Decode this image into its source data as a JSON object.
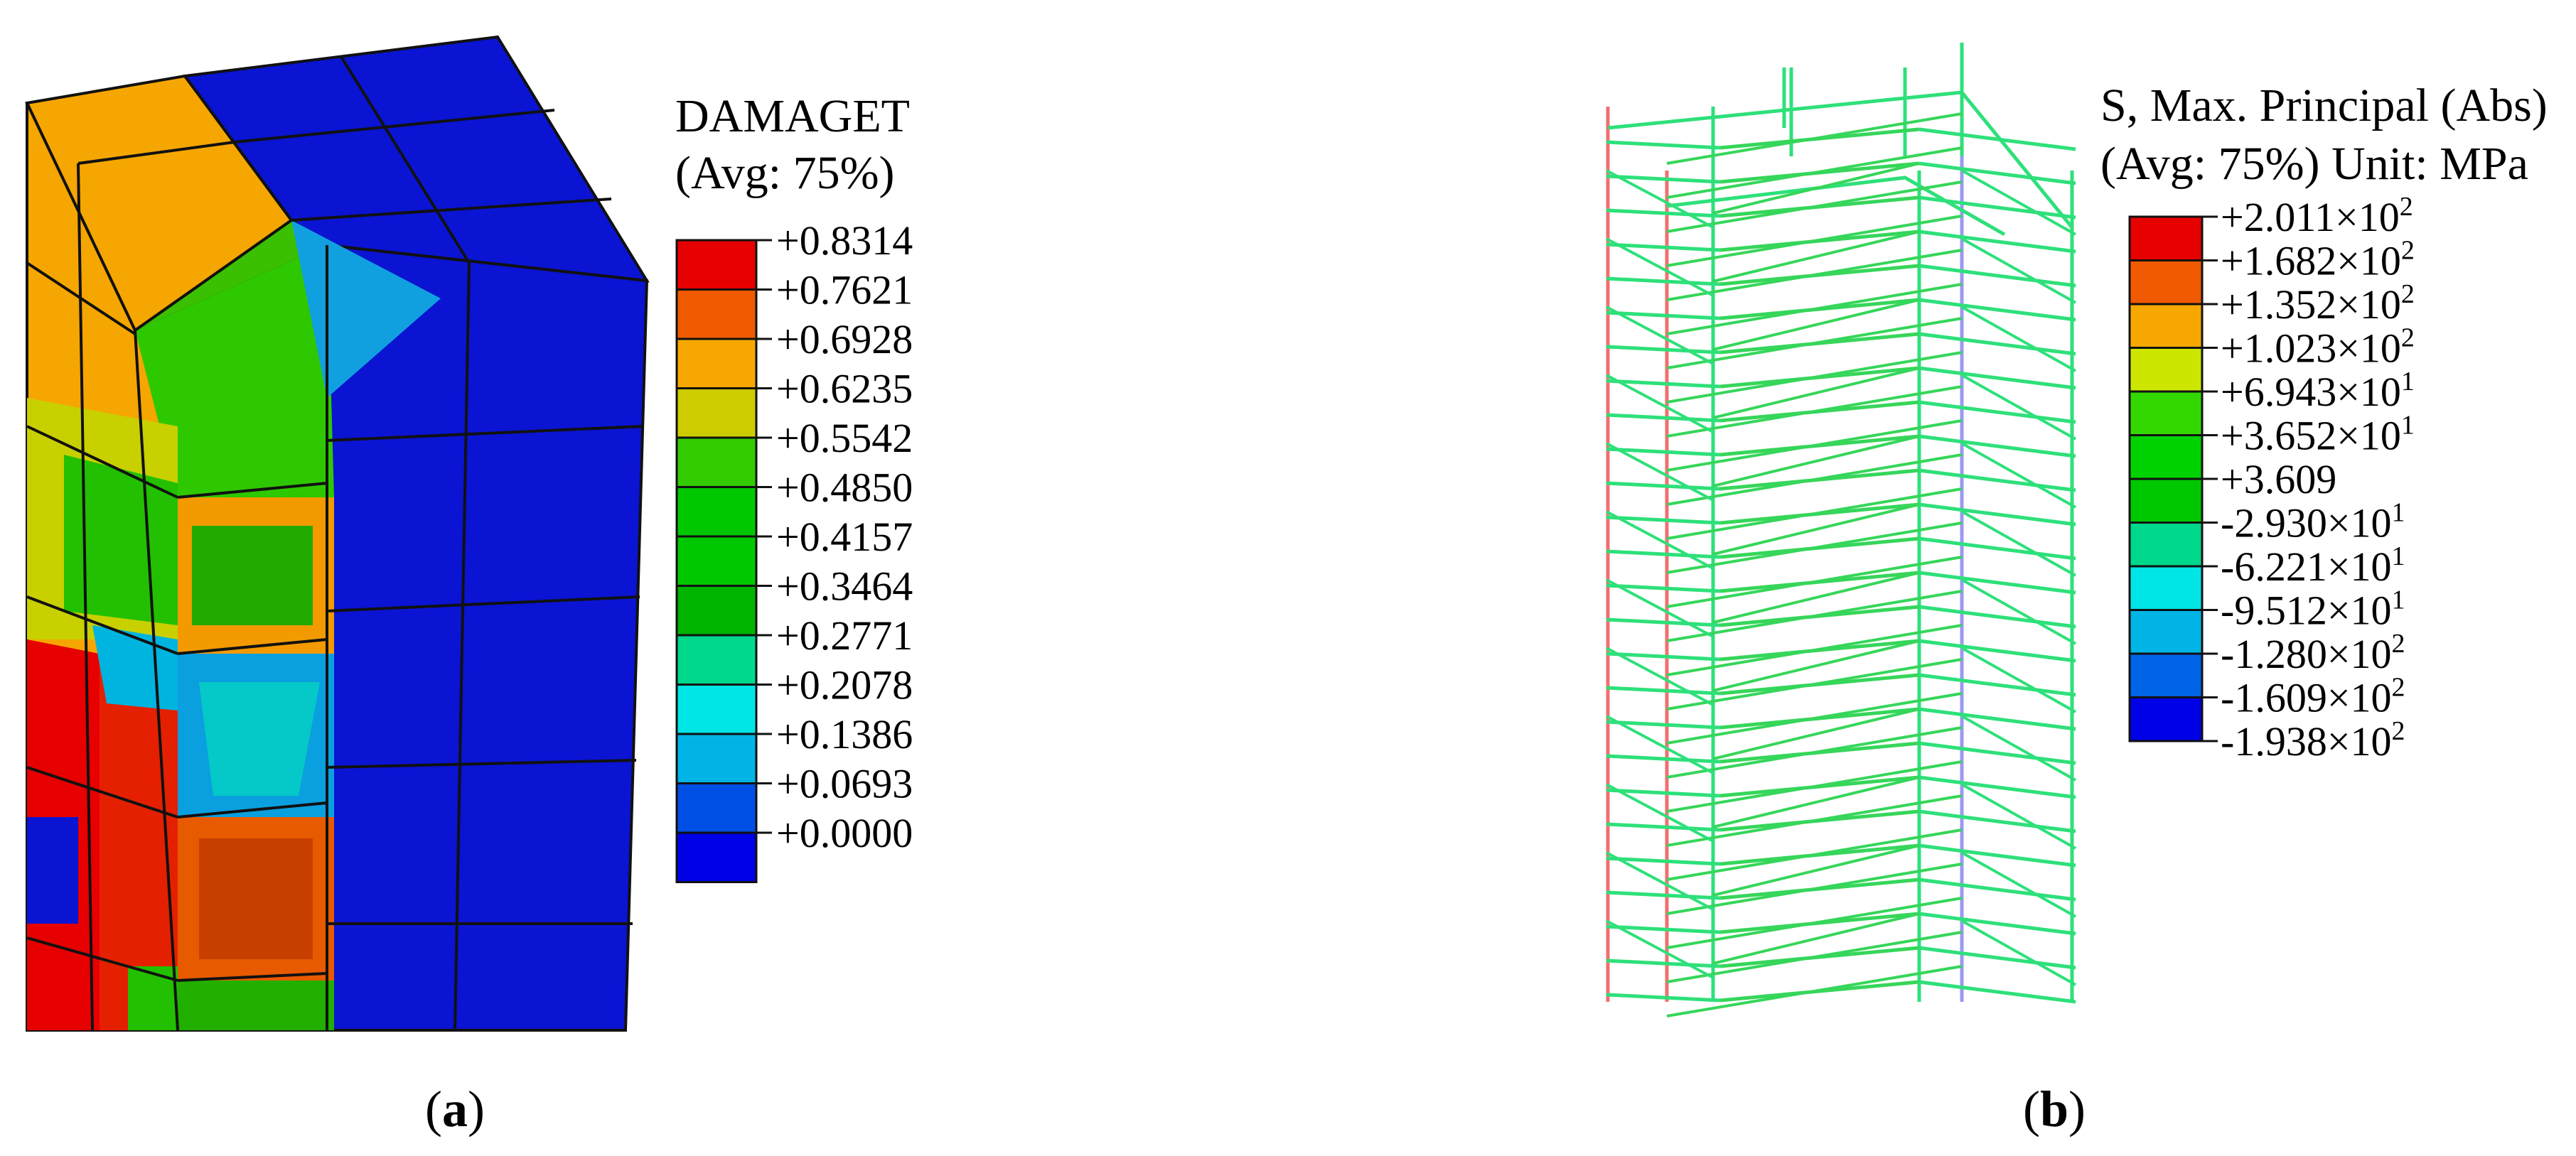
{
  "panel_a": {
    "caption_letter": "a",
    "legend": {
      "title": "DAMAGET",
      "subtitle": "(Avg: 75%)",
      "colors": [
        "#e60000",
        "#f05a00",
        "#f7a800",
        "#cccc00",
        "#33cc00",
        "#00c800",
        "#00c800",
        "#00b400",
        "#00d88c",
        "#00e6e6",
        "#00b4e6",
        "#0050e6",
        "#0000e6"
      ],
      "labels": [
        "+0.8314",
        "+0.7621",
        "+0.6928",
        "+0.6235",
        "+0.5542",
        "+0.4850",
        "+0.4157",
        "+0.3464",
        "+0.2771",
        "+0.2078",
        "+0.1386",
        "+0.0693",
        "+0.0000"
      ]
    }
  },
  "panel_b": {
    "caption_letter": "b",
    "legend": {
      "title": "S, Max. Principal (Abs)",
      "subtitle": "(Avg: 75%)  Unit: MPa",
      "colors": [
        "#e60000",
        "#f05a00",
        "#f7a800",
        "#cce600",
        "#33d800",
        "#00d200",
        "#00c800",
        "#00d88c",
        "#00e6e6",
        "#00b4e6",
        "#0064e6",
        "#0000e6"
      ],
      "labels": [
        {
          "mant": "+2.011×10",
          "exp": "2"
        },
        {
          "mant": "+1.682×10",
          "exp": "2"
        },
        {
          "mant": "+1.352×10",
          "exp": "2"
        },
        {
          "mant": "+1.023×10",
          "exp": "2"
        },
        {
          "mant": "+6.943×10",
          "exp": "1"
        },
        {
          "mant": "+3.652×10",
          "exp": "1"
        },
        {
          "mant": "+3.609",
          "exp": ""
        },
        {
          "mant": "-2.930×10",
          "exp": "1"
        },
        {
          "mant": "-6.221×10",
          "exp": "1"
        },
        {
          "mant": "-9.512×10",
          "exp": "1"
        },
        {
          "mant": "-1.280×10",
          "exp": "2"
        },
        {
          "mant": "-1.609×10",
          "exp": "2"
        },
        {
          "mant": "-1.938×10",
          "exp": "2"
        }
      ]
    }
  }
}
